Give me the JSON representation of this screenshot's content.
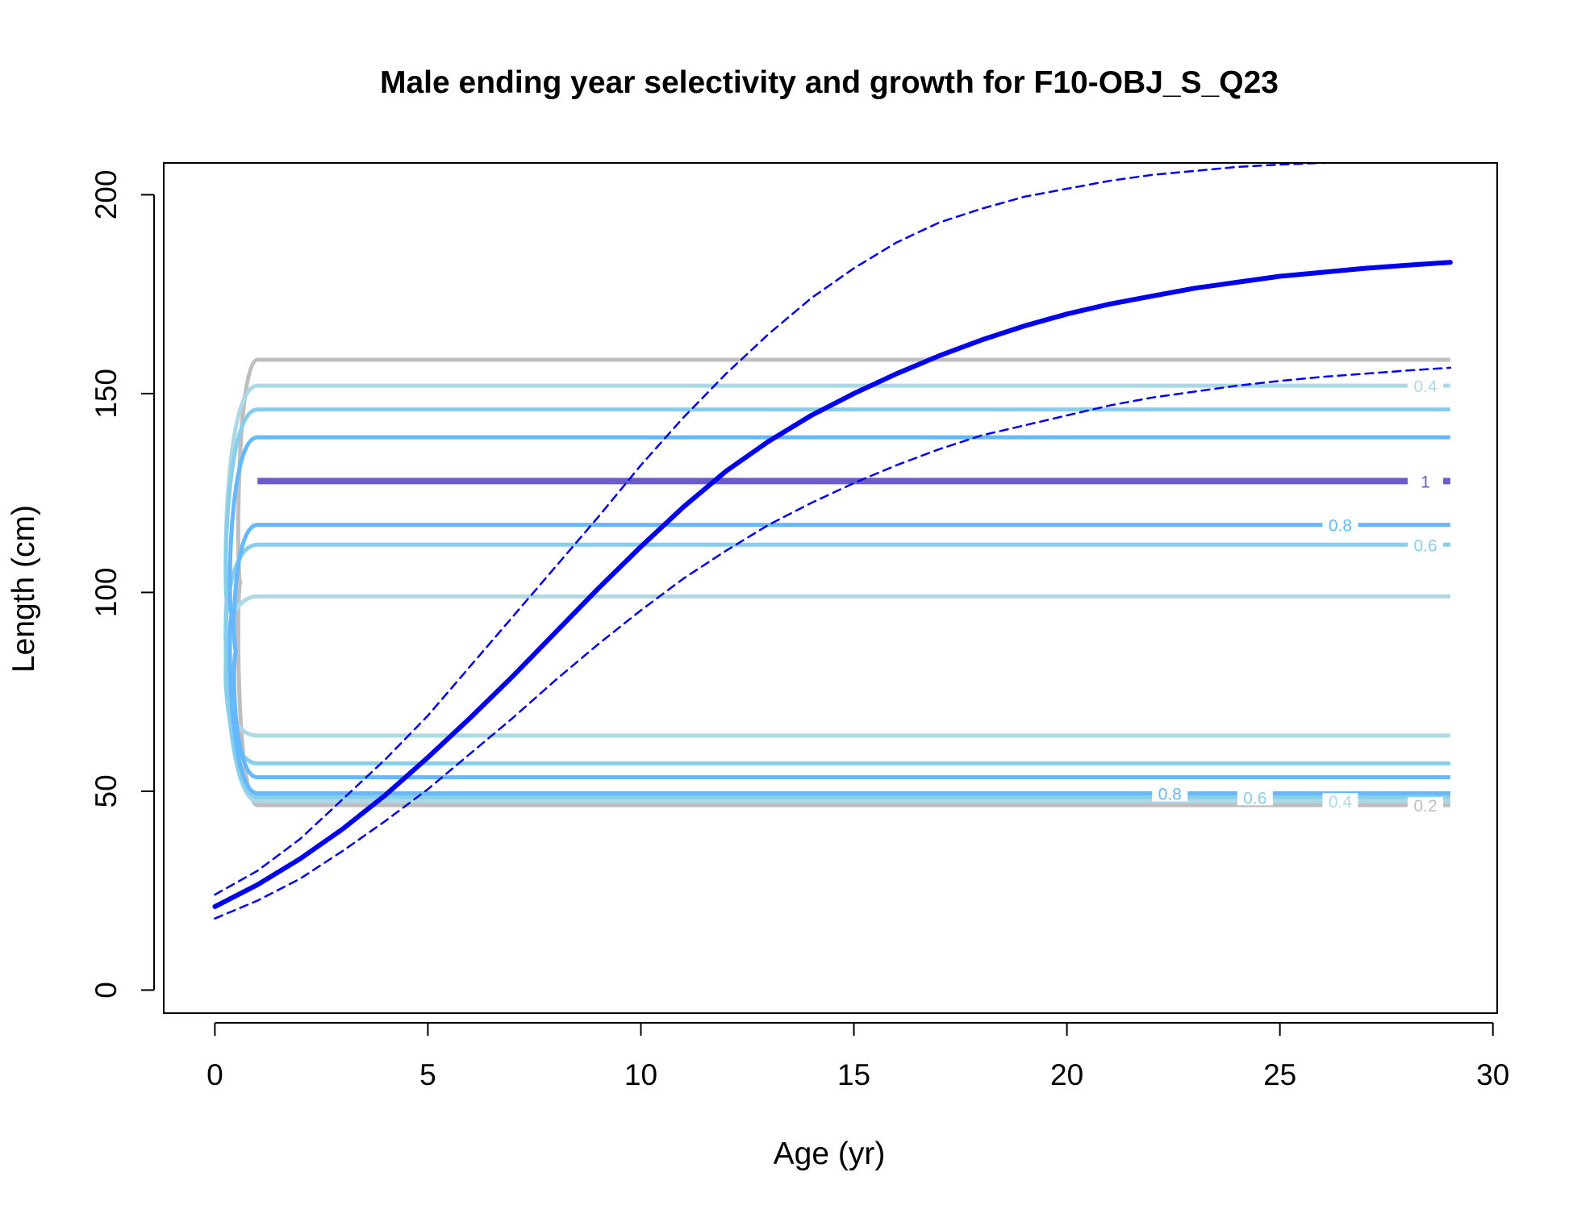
{
  "chart_data": {
    "type": "line",
    "title": "Male ending year selectivity and growth for F10-OBJ_S_Q23",
    "xlabel": "Age (yr)",
    "ylabel": "Length (cm)",
    "xlim": [
      -1.2,
      30.1
    ],
    "ylim": [
      -5.8,
      208
    ],
    "xticks": [
      0,
      5,
      10,
      15,
      20,
      25,
      30
    ],
    "yticks": [
      0,
      50,
      100,
      150,
      200
    ],
    "grid": false,
    "colors": {
      "growth": "#0000ee",
      "level_0.2": "#bebebe",
      "level_0.4": "#add8e6",
      "level_0.6": "#87ceeb",
      "level_0.8": "#63b8ff",
      "level_1": "#6a5acd"
    },
    "series": [
      {
        "name": "",
        "style": "solid-thick",
        "x": [
          0,
          1,
          2,
          3,
          4,
          5,
          6,
          7,
          8,
          9,
          10,
          11,
          12,
          13,
          14,
          15,
          16,
          17,
          18,
          19,
          20,
          21,
          22,
          23,
          24,
          25,
          26,
          27,
          28,
          29
        ],
        "y": [
          21,
          26.5,
          33,
          40.5,
          49,
          58.5,
          68.5,
          79,
          90,
          101,
          111.5,
          121.5,
          130.5,
          138,
          144.5,
          150,
          155,
          159.5,
          163.5,
          167,
          170,
          172.5,
          174.5,
          176.5,
          178,
          179.5,
          180.5,
          181.5,
          182.3,
          183
        ]
      },
      {
        "name": "",
        "style": "dashed",
        "x": [
          0,
          1,
          2,
          3,
          4,
          5,
          6,
          7,
          8,
          9,
          10,
          11,
          12,
          13,
          14,
          15,
          16,
          17,
          18,
          19,
          20,
          21,
          22,
          23,
          24,
          25,
          26,
          27,
          28,
          29
        ],
        "y": [
          24,
          30,
          38,
          48,
          58,
          69,
          81.5,
          94,
          106.5,
          119,
          132,
          144,
          155,
          165,
          174,
          181.5,
          188,
          193,
          196.5,
          199.5,
          201.5,
          203.5,
          205,
          206,
          207,
          207.6,
          208,
          208.5,
          209,
          209.5
        ]
      },
      {
        "name": "",
        "style": "dashed",
        "x": [
          0,
          1,
          2,
          3,
          4,
          5,
          6,
          7,
          8,
          9,
          10,
          11,
          12,
          13,
          14,
          15,
          16,
          17,
          18,
          19,
          20,
          21,
          22,
          23,
          24,
          25,
          26,
          27,
          28,
          29
        ],
        "y": [
          18,
          22.5,
          28,
          35,
          42.5,
          50.5,
          59.5,
          68.5,
          78,
          87,
          95.5,
          103.5,
          110.5,
          117,
          122.5,
          127.5,
          132,
          136,
          139.5,
          142,
          144.5,
          147,
          149,
          150.5,
          152,
          153.2,
          154.2,
          155,
          155.8,
          156.5
        ]
      }
    ],
    "contours": [
      {
        "level": "0.2",
        "upper": 158.5,
        "lower": 46.5,
        "label_lower": "0.2"
      },
      {
        "level": "0.4",
        "upper": 152,
        "lower": 47.5,
        "label_upper": "0.4",
        "label_lower": "0.4"
      },
      {
        "level": "0.4",
        "upper": 99,
        "lower": 64
      },
      {
        "level": "0.6",
        "upper": 146,
        "lower": 48.5,
        "label_lower": "0.6"
      },
      {
        "level": "0.6",
        "upper": 112,
        "lower": 57,
        "label_upper": "0.6"
      },
      {
        "level": "0.8",
        "upper": 139,
        "lower": 49.5,
        "label_lower": "0.8"
      },
      {
        "level": "0.8",
        "upper": 117,
        "lower": 53.5,
        "label_upper": "0.8"
      },
      {
        "level": "1",
        "upper": 128,
        "label_upper": "1"
      }
    ]
  }
}
